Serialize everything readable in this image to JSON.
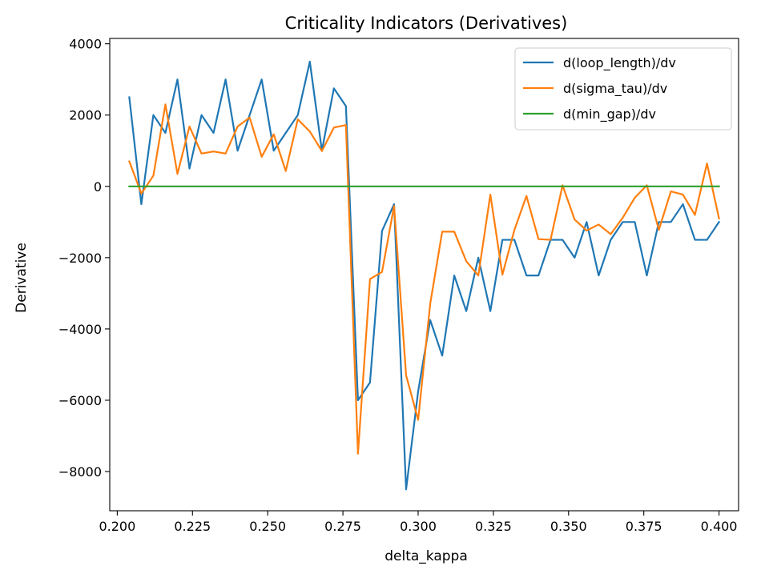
{
  "chart_data": {
    "type": "line",
    "title": "Criticality Indicators (Derivatives)",
    "xlabel": "delta_kappa",
    "ylabel": "Derivative",
    "xlim": [
      0.1975,
      0.4065
    ],
    "ylim": [
      -9100,
      4150
    ],
    "xticks": [
      0.2,
      0.225,
      0.25,
      0.275,
      0.3,
      0.325,
      0.35,
      0.375,
      0.4
    ],
    "xtick_labels": [
      "0.200",
      "0.225",
      "0.250",
      "0.275",
      "0.300",
      "0.325",
      "0.350",
      "0.375",
      "0.400"
    ],
    "yticks": [
      4000,
      2000,
      0,
      -2000,
      -4000,
      -6000,
      -8000
    ],
    "ytick_labels": [
      "4000",
      "2000",
      "0",
      "−2000",
      "−4000",
      "−6000",
      "−8000"
    ],
    "grid": false,
    "legend_position": "top-right",
    "x": [
      0.204,
      0.208,
      0.212,
      0.216,
      0.22,
      0.224,
      0.228,
      0.232,
      0.236,
      0.24,
      0.244,
      0.248,
      0.252,
      0.256,
      0.26,
      0.264,
      0.268,
      0.272,
      0.276,
      0.28,
      0.284,
      0.288,
      0.292,
      0.296,
      0.3,
      0.304,
      0.308,
      0.312,
      0.316,
      0.32,
      0.324,
      0.328,
      0.332,
      0.336,
      0.34,
      0.344,
      0.348,
      0.352,
      0.356,
      0.36,
      0.364,
      0.368,
      0.372,
      0.376,
      0.38,
      0.384,
      0.388,
      0.392,
      0.396,
      0.4
    ],
    "series": [
      {
        "name": "d(loop_length)/dv",
        "color": "#1f77b4",
        "values": [
          2500,
          -500,
          2000,
          1500,
          3000,
          500,
          2000,
          1500,
          3000,
          1000,
          2000,
          3000,
          1000,
          1500,
          2000,
          3500,
          1000,
          2750,
          2250,
          -6000,
          -5500,
          -1250,
          -500,
          -8500,
          -5750,
          -3750,
          -4750,
          -2500,
          -3500,
          -2000,
          -3500,
          -1500,
          -1500,
          -2500,
          -2500,
          -1500,
          -1500,
          -2000,
          -1000,
          -2500,
          -1500,
          -1000,
          -1000,
          -2500,
          -1000,
          -1000,
          -500,
          -1500,
          -1500,
          -1000
        ]
      },
      {
        "name": "d(sigma_tau)/dv",
        "color": "#ff7f0e",
        "values": [
          700,
          -200,
          300,
          2300,
          350,
          1680,
          920,
          980,
          920,
          1680,
          1930,
          830,
          1460,
          430,
          1880,
          1540,
          990,
          1650,
          1720,
          -7500,
          -2600,
          -2400,
          -550,
          -5300,
          -6550,
          -3300,
          -1270,
          -1270,
          -2100,
          -2500,
          -230,
          -2480,
          -1220,
          -270,
          -1480,
          -1500,
          30,
          -930,
          -1240,
          -1070,
          -1340,
          -880,
          -320,
          30,
          -1220,
          -140,
          -230,
          -800,
          640,
          -900
        ]
      },
      {
        "name": "d(min_gap)/dv",
        "color": "#2ca02c",
        "values": [
          0,
          0,
          0,
          0,
          0,
          0,
          0,
          0,
          0,
          0,
          0,
          0,
          0,
          0,
          0,
          0,
          0,
          0,
          0,
          0,
          0,
          0,
          0,
          0,
          0,
          0,
          0,
          0,
          0,
          0,
          0,
          0,
          0,
          0,
          0,
          0,
          0,
          0,
          0,
          0,
          0,
          0,
          0,
          0,
          0,
          0,
          0,
          0,
          0,
          0
        ]
      }
    ]
  }
}
